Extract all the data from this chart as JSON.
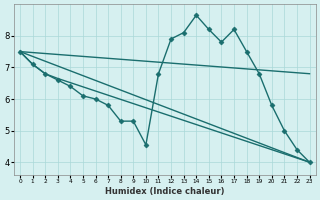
{
  "xlabel": "Humidex (Indice chaleur)",
  "background_color": "#d6f0f0",
  "grid_color": "#aad8d8",
  "line_color": "#1a6e6e",
  "x_ticks": [
    0,
    1,
    2,
    3,
    4,
    5,
    6,
    7,
    8,
    9,
    10,
    11,
    12,
    13,
    14,
    15,
    16,
    17,
    18,
    19,
    20,
    21,
    22,
    23
  ],
  "y_ticks": [
    4,
    5,
    6,
    7,
    8
  ],
  "ylim": [
    3.6,
    9.0
  ],
  "xlim": [
    -0.5,
    23.5
  ],
  "lines": [
    {
      "x": [
        0,
        1,
        2,
        3,
        4,
        5,
        6,
        7,
        8,
        9,
        10,
        11,
        12,
        13,
        14,
        15,
        16,
        17,
        18,
        19,
        20,
        21,
        22,
        23
      ],
      "y": [
        7.5,
        7.1,
        6.8,
        6.6,
        6.4,
        6.1,
        6.0,
        5.8,
        5.3,
        5.3,
        4.55,
        6.8,
        7.9,
        8.1,
        8.65,
        8.2,
        7.8,
        8.2,
        7.5,
        6.8,
        5.8,
        5.0,
        4.4,
        4.0
      ],
      "marker": "D",
      "markersize": 2.5,
      "linewidth": 1.0
    },
    {
      "x": [
        0,
        1,
        2,
        3,
        23
      ],
      "y": [
        7.5,
        7.1,
        6.8,
        6.65,
        4.0
      ],
      "marker": null,
      "markersize": 0,
      "linewidth": 1.0
    },
    {
      "x": [
        0,
        23
      ],
      "y": [
        7.5,
        6.8
      ],
      "marker": null,
      "markersize": 0,
      "linewidth": 1.0
    },
    {
      "x": [
        0,
        23
      ],
      "y": [
        7.5,
        4.0
      ],
      "marker": null,
      "markersize": 0,
      "linewidth": 1.0
    }
  ]
}
